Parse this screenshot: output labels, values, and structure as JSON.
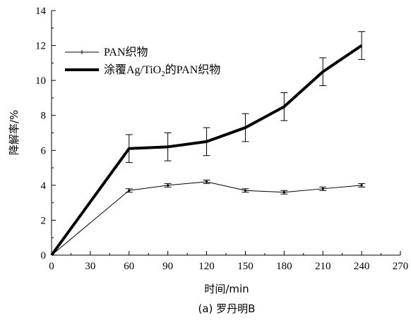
{
  "chart_data": {
    "type": "line",
    "xlabel": "时间/min",
    "ylabel": "降解率/%",
    "caption": "(a) 罗丹明B",
    "xlim": [
      0,
      270
    ],
    "ylim": [
      0,
      14
    ],
    "xticks": [
      0,
      30,
      60,
      90,
      120,
      150,
      180,
      210,
      240,
      270
    ],
    "yticks": [
      0,
      2,
      4,
      6,
      8,
      10,
      12,
      14
    ],
    "x": [
      0,
      60,
      90,
      120,
      150,
      180,
      210,
      240
    ],
    "grid": false,
    "legend_position": "top-left",
    "series": [
      {
        "name": "PAN织物",
        "values": [
          0,
          3.7,
          4.0,
          4.2,
          3.7,
          3.6,
          3.8,
          4.0
        ],
        "errors": [
          0,
          0.1,
          0.1,
          0.1,
          0.1,
          0.1,
          0.1,
          0.1
        ],
        "style": "thin",
        "color": "#000000"
      },
      {
        "name": "涂覆Ag/TiO2的PAN织物",
        "values": [
          0,
          6.1,
          6.2,
          6.5,
          7.3,
          8.5,
          10.5,
          12.0
        ],
        "errors": [
          0,
          0.8,
          0.8,
          0.8,
          0.8,
          0.8,
          0.8,
          0.8
        ],
        "style": "thick",
        "color": "#000000"
      }
    ]
  },
  "legend": {
    "item1": "PAN织物",
    "item2_prefix": "涂覆Ag/TiO",
    "item2_sub": "2",
    "item2_suffix": "的PAN织物"
  }
}
